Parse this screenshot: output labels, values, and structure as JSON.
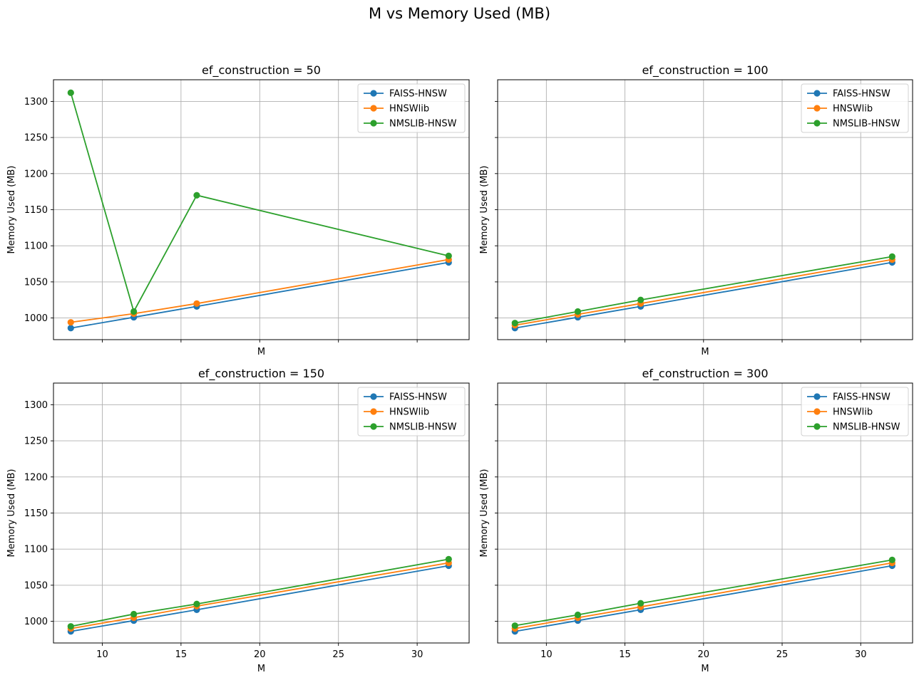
{
  "figure": {
    "title": "M vs Memory Used (MB)"
  },
  "colors": {
    "FAISS-HNSW": "#1f77b4",
    "HNSWlib": "#ff7f0e",
    "NMSLIB-HNSW": "#2ca02c",
    "grid": "#b0b0b0"
  },
  "chart_data": [
    {
      "type": "line",
      "title": "ef_construction = 50",
      "xlabel": "M",
      "ylabel": "Memory Used (MB)",
      "x": [
        8,
        12,
        16,
        32
      ],
      "xticks": [
        10,
        15,
        20,
        25,
        30
      ],
      "yticks": [
        1000,
        1050,
        1100,
        1150,
        1200,
        1250,
        1300
      ],
      "show_xticklabels": false,
      "show_yticklabels": true,
      "xlim": [
        6.9,
        33.3
      ],
      "ylim": [
        970,
        1330
      ],
      "grid": true,
      "legend": "top-right",
      "series": [
        {
          "name": "FAISS-HNSW",
          "values": [
            986,
            1001,
            1016,
            1077
          ]
        },
        {
          "name": "HNSWlib",
          "values": [
            994,
            1006,
            1020,
            1081
          ]
        },
        {
          "name": "NMSLIB-HNSW",
          "values": [
            1312,
            1009,
            1170,
            1086
          ]
        }
      ]
    },
    {
      "type": "line",
      "title": "ef_construction = 100",
      "xlabel": "M",
      "ylabel": "Memory Used (MB)",
      "x": [
        8,
        12,
        16,
        32
      ],
      "xticks": [
        10,
        15,
        20,
        25,
        30
      ],
      "yticks": [
        1000,
        1050,
        1100,
        1150,
        1200,
        1250,
        1300
      ],
      "show_xticklabels": false,
      "show_yticklabels": false,
      "xlim": [
        6.9,
        33.3
      ],
      "ylim": [
        970,
        1330
      ],
      "grid": true,
      "legend": "top-right",
      "series": [
        {
          "name": "FAISS-HNSW",
          "values": [
            986,
            1001,
            1016,
            1077
          ]
        },
        {
          "name": "HNSWlib",
          "values": [
            990,
            1005,
            1020,
            1081
          ]
        },
        {
          "name": "NMSLIB-HNSW",
          "values": [
            993,
            1009,
            1025,
            1085
          ]
        }
      ]
    },
    {
      "type": "line",
      "title": "ef_construction = 150",
      "xlabel": "M",
      "ylabel": "Memory Used (MB)",
      "x": [
        8,
        12,
        16,
        32
      ],
      "xticks": [
        10,
        15,
        20,
        25,
        30
      ],
      "yticks": [
        1000,
        1050,
        1100,
        1150,
        1200,
        1250,
        1300
      ],
      "show_xticklabels": true,
      "show_yticklabels": true,
      "xlim": [
        6.9,
        33.3
      ],
      "ylim": [
        970,
        1330
      ],
      "grid": true,
      "legend": "top-right",
      "series": [
        {
          "name": "FAISS-HNSW",
          "values": [
            986,
            1001,
            1016,
            1077
          ]
        },
        {
          "name": "HNSWlib",
          "values": [
            990,
            1005,
            1021,
            1081
          ]
        },
        {
          "name": "NMSLIB-HNSW",
          "values": [
            993,
            1010,
            1024,
            1086
          ]
        }
      ]
    },
    {
      "type": "line",
      "title": "ef_construction = 300",
      "xlabel": "M",
      "ylabel": "Memory Used (MB)",
      "x": [
        8,
        12,
        16,
        32
      ],
      "xticks": [
        10,
        15,
        20,
        25,
        30
      ],
      "yticks": [
        1000,
        1050,
        1100,
        1150,
        1200,
        1250,
        1300
      ],
      "show_xticklabels": true,
      "show_yticklabels": false,
      "xlim": [
        6.9,
        33.3
      ],
      "ylim": [
        970,
        1330
      ],
      "grid": true,
      "legend": "top-right",
      "series": [
        {
          "name": "FAISS-HNSW",
          "values": [
            986,
            1001,
            1016,
            1077
          ]
        },
        {
          "name": "HNSWlib",
          "values": [
            990,
            1005,
            1020,
            1081
          ]
        },
        {
          "name": "NMSLIB-HNSW",
          "values": [
            994,
            1009,
            1025,
            1085
          ]
        }
      ]
    }
  ]
}
